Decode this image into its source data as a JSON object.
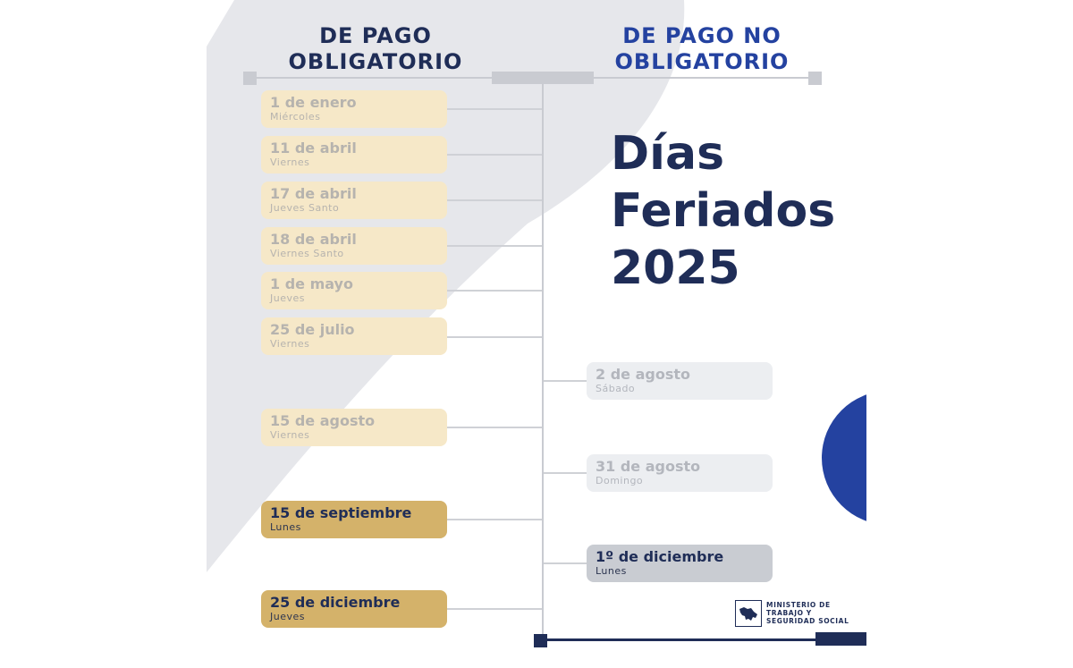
{
  "headers": {
    "left_line1": "DE PAGO",
    "left_line2": "OBLIGATORIO",
    "right_line1": "DE PAGO NO",
    "right_line2": "OBLIGATORIO"
  },
  "title": {
    "line1": "Días",
    "line2": "Feriados",
    "line3": "2025"
  },
  "mandatory_holidays": [
    {
      "date": "1 de enero",
      "weekday": "Miércoles",
      "highlighted": false
    },
    {
      "date": "11 de abril",
      "weekday": "Viernes",
      "highlighted": false
    },
    {
      "date": "17 de abril",
      "weekday": "Jueves Santo",
      "highlighted": false
    },
    {
      "date": "18 de abril",
      "weekday": "Viernes Santo",
      "highlighted": false
    },
    {
      "date": "1 de mayo",
      "weekday": "Jueves",
      "highlighted": false
    },
    {
      "date": "25 de julio",
      "weekday": "Viernes",
      "highlighted": false
    },
    {
      "date": "15 de agosto",
      "weekday": "Viernes",
      "highlighted": false
    },
    {
      "date": "15 de septiembre",
      "weekday": "Lunes",
      "highlighted": true
    },
    {
      "date": "25 de diciembre",
      "weekday": "Jueves",
      "highlighted": true
    }
  ],
  "optional_holidays": [
    {
      "date": "2 de agosto",
      "weekday": "Sábado",
      "highlighted": false
    },
    {
      "date": "31 de agosto",
      "weekday": "Domingo",
      "highlighted": false
    },
    {
      "date": "1º de diciembre",
      "weekday": "Lunes",
      "highlighted": true
    }
  ],
  "ministry": {
    "line1": "MINISTERIO DE",
    "line2": "TRABAJO Y",
    "line3": "SEGURIDAD SOCIAL",
    "logo_icon": "costa-rica-map-icon"
  },
  "colors": {
    "navy": "#1f2d57",
    "royal_blue": "#2442a0",
    "gold": "#d4b26a",
    "light_gold": "#f6e8c8",
    "grey": "#c9ccd2"
  }
}
